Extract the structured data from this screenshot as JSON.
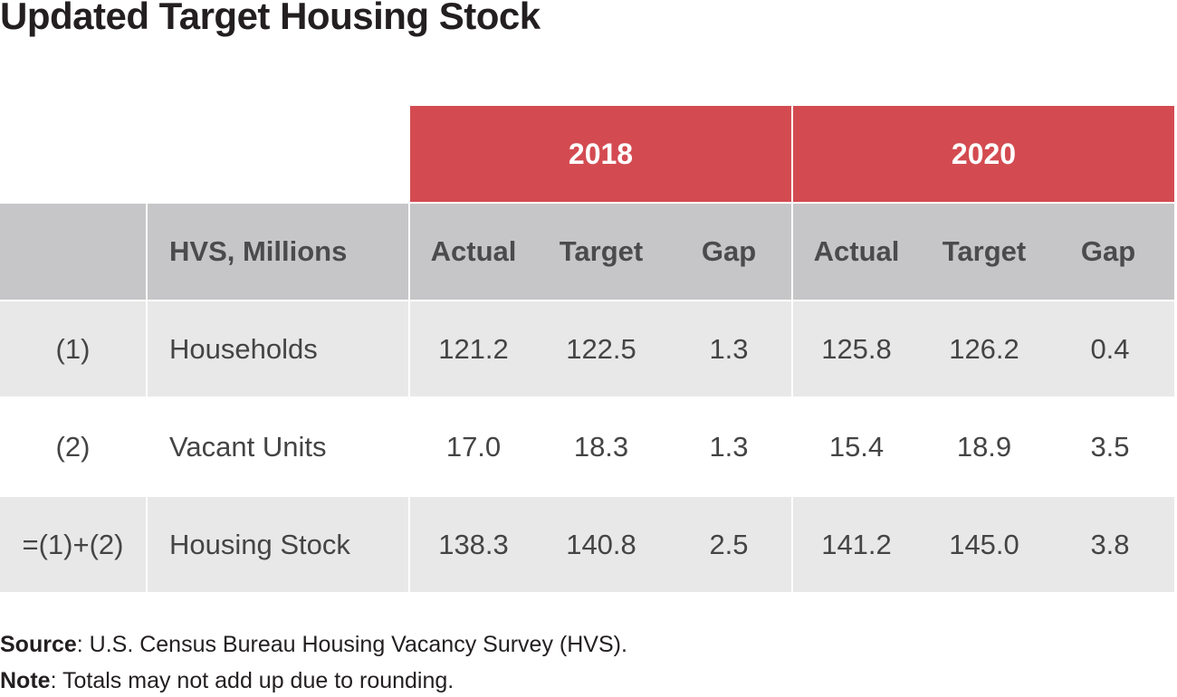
{
  "title": "Updated Target Housing Stock",
  "years": [
    "2018",
    "2020"
  ],
  "header": {
    "label": "HVS, Millions",
    "columns": [
      "Actual",
      "Target",
      "Gap",
      "Actual",
      "Target",
      "Gap"
    ]
  },
  "rows": [
    {
      "ref": "(1)",
      "label": "Households",
      "values": [
        "121.2",
        "122.5",
        "1.3",
        "125.8",
        "126.2",
        "0.4"
      ]
    },
    {
      "ref": "(2)",
      "label": "Vacant Units",
      "values": [
        "17.0",
        "18.3",
        "1.3",
        "15.4",
        "18.9",
        "3.5"
      ]
    },
    {
      "ref": "=(1)+(2)",
      "label": "Housing Stock",
      "values": [
        "138.3",
        "140.8",
        "2.5",
        "141.2",
        "145.0",
        "3.8"
      ]
    }
  ],
  "footer": {
    "source_label": "Source",
    "source_text": ": U.S. Census Bureau Housing Vacancy Survey (HVS).",
    "note_label": "Note",
    "note_text": ": Totals may not add up due to rounding."
  },
  "colors": {
    "year_header": "#d34b51",
    "column_header": "#c6c6c8",
    "row_shade": "#e8e8e8"
  }
}
